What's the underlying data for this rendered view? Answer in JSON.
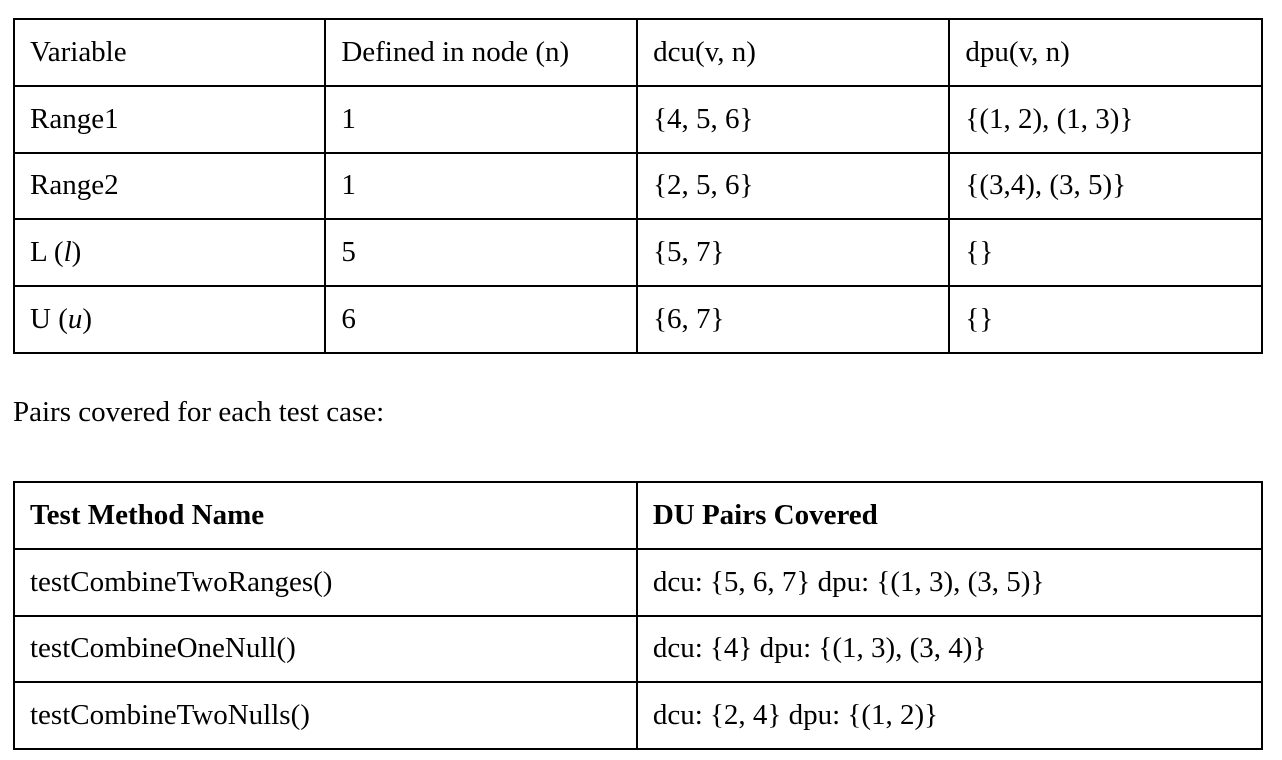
{
  "defuse_table": {
    "headers": [
      "Variable",
      "Defined in node (n)",
      "dcu(v, n)",
      "dpu(v, n)"
    ],
    "rows": [
      {
        "variable": "Range1",
        "node": "1",
        "dcu": "{4, 5, 6}",
        "dpu": "{(1, 2), (1, 3)}"
      },
      {
        "variable": "Range2",
        "node": "1",
        "dcu": "{2, 5, 6}",
        "dpu": "{(3,4), (3, 5)}"
      },
      {
        "variable_name": "L",
        "variable_alias": "l",
        "node": "5",
        "dcu": "{5, 7}",
        "dpu": "{}"
      },
      {
        "variable_name": "U",
        "variable_alias": "u",
        "node": "6",
        "dcu": "{6, 7}",
        "dpu": "{}"
      }
    ]
  },
  "caption": "Pairs covered for each test case:",
  "coverage_table": {
    "headers": [
      "Test Method Name",
      "DU Pairs Covered"
    ],
    "rows": [
      {
        "method": "testCombineTwoRanges()",
        "pairs": "dcu: {5, 6, 7} dpu: {(1, 3), (3, 5)}"
      },
      {
        "method": "testCombineOneNull()",
        "pairs": "dcu: {4} dpu: {(1, 3), (3, 4)}"
      },
      {
        "method": "testCombineTwoNulls()",
        "pairs": "dcu: {2, 4} dpu: {(1, 2)}"
      }
    ]
  }
}
